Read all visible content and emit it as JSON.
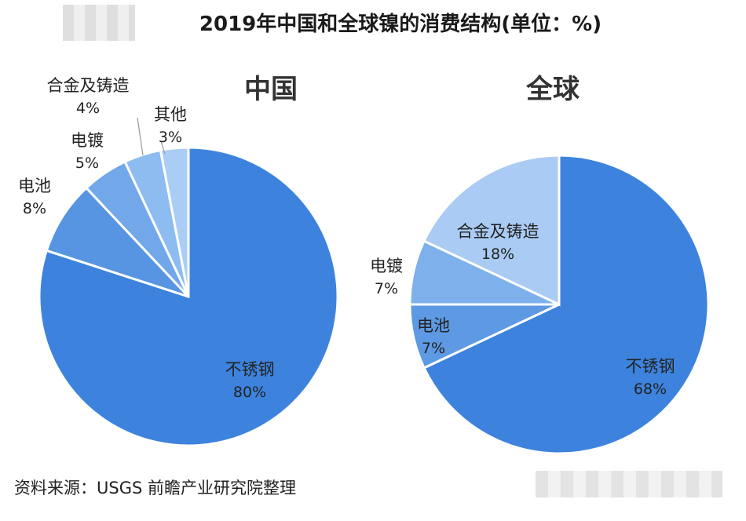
{
  "title": "2019年中国和全球镍的消费结构(单位：%)",
  "source": "资料来源：USGS 前瞻产业研究院整理",
  "chart_data": [
    {
      "type": "pie",
      "title": "中国",
      "slices": [
        {
          "label": "不锈钢",
          "value": 80,
          "value_label": "80%",
          "color": "#3d83dd"
        },
        {
          "label": "电池",
          "value": 8,
          "value_label": "8%",
          "color": "#5795e2"
        },
        {
          "label": "电镀",
          "value": 5,
          "value_label": "5%",
          "color": "#72a8ea"
        },
        {
          "label": "合金及铸造",
          "value": 4,
          "value_label": "4%",
          "color": "#8dbcf0"
        },
        {
          "label": "其他",
          "value": 3,
          "value_label": "3%",
          "color": "#aacdf5"
        }
      ]
    },
    {
      "type": "pie",
      "title": "全球",
      "slices": [
        {
          "label": "不锈钢",
          "value": 68,
          "value_label": "68%",
          "color": "#3d83dd"
        },
        {
          "label": "电池",
          "value": 7,
          "value_label": "7%",
          "color": "#5e9ae3"
        },
        {
          "label": "电镀",
          "value": 7,
          "value_label": "7%",
          "color": "#7eb1ec"
        },
        {
          "label": "合金及铸造",
          "value": 18,
          "value_label": "18%",
          "color": "#a9cbf4"
        }
      ]
    }
  ]
}
